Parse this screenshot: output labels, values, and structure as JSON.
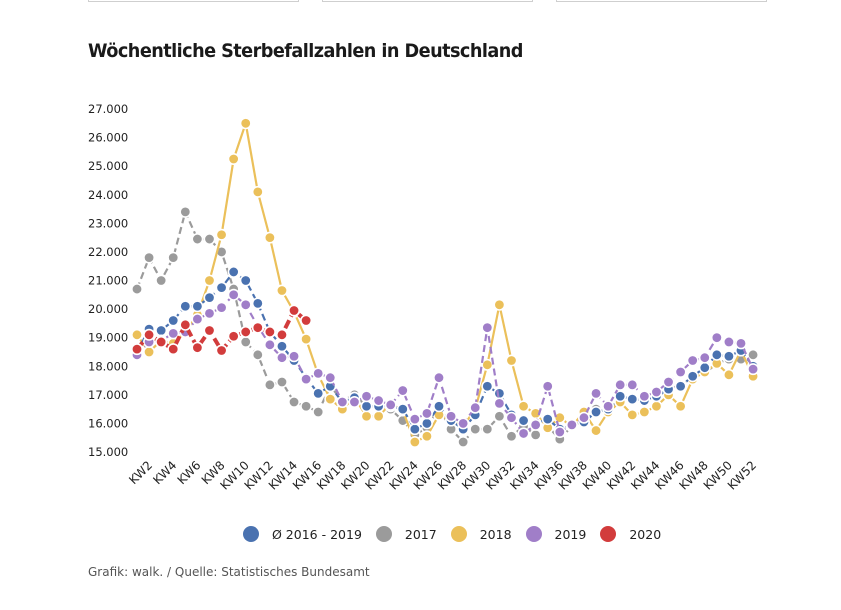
{
  "top_boxes": [
    "",
    "",
    ""
  ],
  "chart_data": {
    "type": "line",
    "title": "Wöchentliche Sterbefallzahlen in Deutschland",
    "xlabel": "",
    "ylabel": "",
    "ylim": [
      15000,
      27000
    ],
    "yticks": [
      "27.000",
      "26.000",
      "25.000",
      "24.000",
      "23.000",
      "22.000",
      "21.000",
      "20.000",
      "19.000",
      "18.000",
      "17.000",
      "16.000",
      "15.000"
    ],
    "ytick_values": [
      27000,
      26000,
      25000,
      24000,
      23000,
      22000,
      21000,
      20000,
      19000,
      18000,
      17000,
      16000,
      15000
    ],
    "x": [
      "KW1",
      "KW2",
      "KW3",
      "KW4",
      "KW5",
      "KW6",
      "KW7",
      "KW8",
      "KW9",
      "KW10",
      "KW11",
      "KW12",
      "KW13",
      "KW14",
      "KW15",
      "KW16",
      "KW17",
      "KW18",
      "KW19",
      "KW20",
      "KW21",
      "KW22",
      "KW23",
      "KW24",
      "KW25",
      "KW26",
      "KW27",
      "KW28",
      "KW29",
      "KW30",
      "KW31",
      "KW32",
      "KW33",
      "KW34",
      "KW35",
      "KW36",
      "KW37",
      "KW38",
      "KW39",
      "KW40",
      "KW41",
      "KW42",
      "KW43",
      "KW44",
      "KW45",
      "KW46",
      "KW47",
      "KW48",
      "KW49",
      "KW50",
      "KW51",
      "KW52"
    ],
    "xtick_labels": [
      "KW2",
      "KW4",
      "KW6",
      "KW8",
      "KW10",
      "KW12",
      "KW14",
      "KW16",
      "KW18",
      "KW20",
      "KW22",
      "KW24",
      "KW26",
      "KW28",
      "KW30",
      "KW32",
      "KW34",
      "KW36",
      "KW38",
      "KW40",
      "KW42",
      "KW44",
      "KW46",
      "KW48",
      "KW50",
      "KW52"
    ],
    "grid": false,
    "legend_position": "bottom",
    "series": [
      {
        "name": "2017",
        "color": "#9b9b9b",
        "dashed": true,
        "values": [
          20700,
          21800,
          21000,
          21800,
          23400,
          22450,
          22450,
          22000,
          20700,
          18850,
          18400,
          17350,
          17450,
          16750,
          16600,
          16400,
          17300,
          16800,
          17000,
          16600,
          16700,
          16500,
          16100,
          15600,
          15850,
          16550,
          15800,
          15350,
          15800,
          15800,
          16250,
          15550,
          15900,
          15600,
          15900,
          15450,
          15900,
          16100,
          16500,
          16400,
          16900,
          16850,
          16900,
          16900,
          17200,
          17350,
          17600,
          17750,
          18100,
          18250,
          18250,
          18400
        ]
      },
      {
        "name": "2018",
        "color": "#ebc05a",
        "dashed": false,
        "values": [
          19100,
          18500,
          18900,
          18800,
          19200,
          19800,
          21000,
          22600,
          25250,
          26500,
          24100,
          22500,
          20650,
          19900,
          18950,
          17700,
          16850,
          16500,
          16900,
          16250,
          16250,
          16700,
          16450,
          15350,
          15550,
          16300,
          16100,
          15900,
          16500,
          18050,
          20150,
          18200,
          16600,
          16350,
          15850,
          16200,
          15900,
          16400,
          15750,
          16400,
          16750,
          16300,
          16400,
          16600,
          17000,
          16600,
          17550,
          17800,
          18100,
          17700,
          18550,
          17650
        ]
      },
      {
        "name": "Ø 2016 - 2019",
        "color": "#4a72b0",
        "dashed": true,
        "values": [
          18500,
          19300,
          19250,
          19600,
          20100,
          20100,
          20400,
          20750,
          21300,
          21000,
          20200,
          19200,
          18700,
          18200,
          17600,
          17050,
          17300,
          16750,
          16900,
          16600,
          16600,
          16600,
          16500,
          15800,
          16000,
          16600,
          16100,
          15800,
          16300,
          17300,
          17050,
          16300,
          16100,
          16000,
          16150,
          15800,
          15950,
          16050,
          16400,
          16500,
          16950,
          16850,
          16800,
          16950,
          17200,
          17300,
          17650,
          17950,
          18400,
          18350,
          18550,
          18000
        ]
      },
      {
        "name": "2019",
        "color": "#a07ec8",
        "dashed": true,
        "values": [
          18400,
          18850,
          18900,
          19150,
          19200,
          19650,
          19850,
          20050,
          20500,
          20150,
          19400,
          18750,
          18300,
          18350,
          17550,
          17750,
          17600,
          16750,
          16750,
          16950,
          16800,
          16650,
          17150,
          16150,
          16350,
          17600,
          16250,
          16000,
          16550,
          19350,
          16700,
          16200,
          15650,
          15950,
          17300,
          15700,
          15950,
          16200,
          17050,
          16600,
          17350,
          17350,
          16950,
          17100,
          17450,
          17800,
          18200,
          18300,
          19000,
          18850,
          18800,
          17900
        ]
      },
      {
        "name": "2020",
        "color": "#d23c3c",
        "dashed": true,
        "thick": true,
        "values": [
          18600,
          19100,
          18850,
          18600,
          19450,
          18650,
          19250,
          18550,
          19050,
          19200,
          19350,
          19200,
          19100,
          19950,
          19600
        ]
      }
    ]
  },
  "legend": [
    {
      "label": "Ø 2016 - 2019",
      "color": "#4a72b0"
    },
    {
      "label": "2017",
      "color": "#9b9b9b"
    },
    {
      "label": "2018",
      "color": "#ebc05a"
    },
    {
      "label": "2019",
      "color": "#a07ec8"
    },
    {
      "label": "2020",
      "color": "#d23c3c"
    }
  ],
  "source": "Grafik: walk. / Quelle: Statistisches Bundesamt"
}
